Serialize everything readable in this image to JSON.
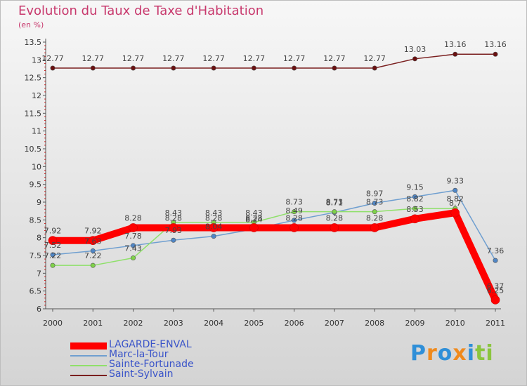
{
  "title": "Evolution du Taux de Taxe d'Habitation",
  "unit_label": "(en %)",
  "logo": {
    "letters": [
      "P",
      "r",
      "o",
      "x",
      "i",
      "t",
      "i"
    ],
    "colors": [
      "#2f8fd8",
      "#f08a1c",
      "#2f8fd8",
      "#f08a1c",
      "#2f8fd8",
      "#8bc53f",
      "#8bc53f"
    ]
  },
  "chart_data": {
    "type": "line",
    "title": "Evolution du Taux de Taxe d'Habitation",
    "ylabel": "(en %)",
    "xlabel": "",
    "x": [
      "2000",
      "2001",
      "2002",
      "2003",
      "2004",
      "2005",
      "2006",
      "2007",
      "2008",
      "2009",
      "2010",
      "2011"
    ],
    "ylim": [
      6,
      13.5
    ],
    "yticks": [
      "6",
      "6.5",
      "7",
      "7.5",
      "8",
      "8.5",
      "9",
      "9.5",
      "10",
      "10.5",
      "11",
      "11.5",
      "12",
      "12.5",
      "13",
      "13.5"
    ],
    "grid": false,
    "legend_position": "bottom-left",
    "series": [
      {
        "name": "LAGARDE-ENVAL",
        "color": "#ff0000",
        "marker": "#ff0000",
        "width": 10,
        "values": [
          7.92,
          7.92,
          8.28,
          8.28,
          8.28,
          8.28,
          8.28,
          8.28,
          8.28,
          8.53,
          8.7,
          6.25
        ],
        "labels": [
          "7.92",
          "7.92",
          "8.28",
          "8.28",
          "8.28",
          "8.28",
          "8.28",
          "8.28",
          "8.28",
          "8.53",
          "8.7",
          "6.25"
        ]
      },
      {
        "name": "Marc-la-Tour",
        "color": "#6f9fd0",
        "marker": "#4f86c6",
        "width": 1.5,
        "values": [
          7.52,
          7.63,
          7.78,
          7.93,
          8.04,
          8.24,
          8.49,
          8.71,
          8.97,
          9.15,
          9.33,
          7.36
        ],
        "labels": [
          "7.52",
          "7.63",
          "7.78",
          "7.93",
          "8.04",
          "8.24",
          "8.49",
          "8.71",
          "8.97",
          "9.15",
          "9.33",
          "7.36"
        ]
      },
      {
        "name": "Sainte-Fortunade",
        "color": "#8fe06a",
        "marker": "#7fd14a",
        "width": 1.5,
        "values": [
          7.22,
          7.22,
          7.43,
          8.43,
          8.43,
          8.43,
          8.73,
          8.73,
          8.73,
          8.82,
          8.82,
          6.37
        ],
        "labels": [
          "7.22",
          "7.22",
          "7.43",
          "8.43",
          "8.43",
          "8.43",
          "8.73",
          "8.73",
          "8.73",
          "8.82",
          "8.82",
          "6.37"
        ]
      },
      {
        "name": "Saint-Sylvain",
        "color": "#7a1f1f",
        "marker": "#6b1010",
        "width": 1.5,
        "values": [
          12.77,
          12.77,
          12.77,
          12.77,
          12.77,
          12.77,
          12.77,
          12.77,
          12.77,
          13.03,
          13.16,
          13.16
        ],
        "labels": [
          "12.77",
          "12.77",
          "12.77",
          "12.77",
          "12.77",
          "12.77",
          "12.77",
          "12.77",
          "12.77",
          "13.03",
          "13.16",
          "13.16"
        ]
      }
    ]
  }
}
